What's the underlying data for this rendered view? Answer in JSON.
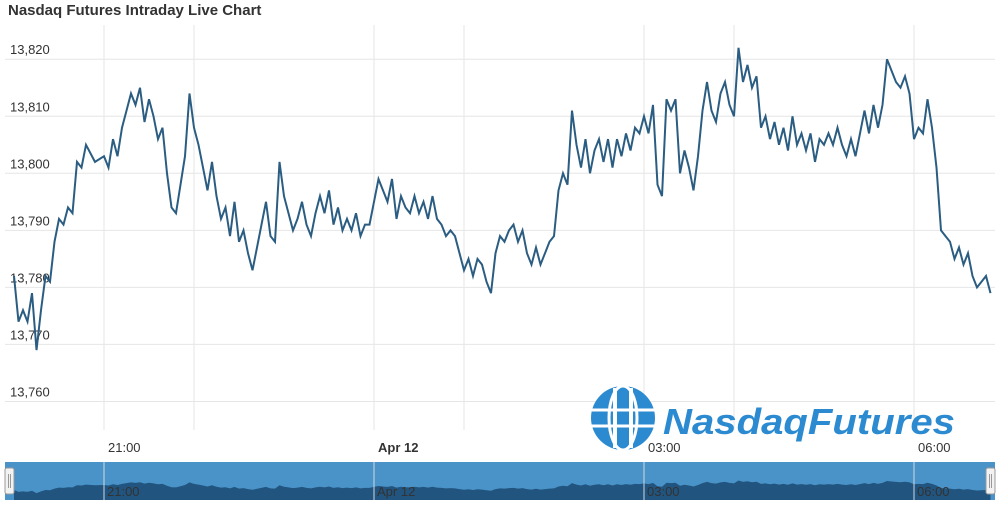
{
  "title": "Nasdaq Futures Intraday Live Chart",
  "colors": {
    "line": "#2b5d82",
    "grid": "#e6e6e6",
    "navigator_bg": "#4a93c8",
    "navigator_fill": "#1d4e75",
    "logo": "#2c8bd0"
  },
  "logo": {
    "text": "NasdaqFutures",
    "icon": "globe-dollar-icon"
  },
  "chart_data": {
    "type": "line",
    "title": "Nasdaq Futures Intraday Live Chart",
    "xlabel": "",
    "ylabel": "",
    "ylim": [
      13755,
      13826
    ],
    "y_ticks": [
      {
        "value": 13760,
        "label": "13,760"
      },
      {
        "value": 13770,
        "label": "13,770"
      },
      {
        "value": 13780,
        "label": "13,780"
      },
      {
        "value": 13790,
        "label": "13,790"
      },
      {
        "value": 13800,
        "label": "13,800"
      },
      {
        "value": 13810,
        "label": "13,810"
      },
      {
        "value": 13820,
        "label": "13,820"
      }
    ],
    "x_range_hours": [
      19.9,
      30.9
    ],
    "x_grid_hours": [
      21,
      22,
      24,
      25,
      27,
      28,
      30
    ],
    "x_ticks": [
      {
        "hour": 21,
        "label": "21:00",
        "bold": false
      },
      {
        "hour": 24,
        "label": "Apr 12",
        "bold": true
      },
      {
        "hour": 27,
        "label": "03:00",
        "bold": false
      },
      {
        "hour": 30,
        "label": "06:00",
        "bold": false
      }
    ],
    "grid": true,
    "legend": "none",
    "series": [
      {
        "values": [
          [
            20.0,
            13782
          ],
          [
            20.05,
            13774
          ],
          [
            20.1,
            13776
          ],
          [
            20.15,
            13774
          ],
          [
            20.2,
            13779
          ],
          [
            20.25,
            13769
          ],
          [
            20.3,
            13776
          ],
          [
            20.35,
            13782
          ],
          [
            20.4,
            13781
          ],
          [
            20.45,
            13788
          ],
          [
            20.5,
            13792
          ],
          [
            20.55,
            13791
          ],
          [
            20.6,
            13794
          ],
          [
            20.65,
            13793
          ],
          [
            20.7,
            13802
          ],
          [
            20.75,
            13801
          ],
          [
            20.8,
            13805
          ],
          [
            20.9,
            13802
          ],
          [
            21.0,
            13803
          ],
          [
            21.05,
            13801
          ],
          [
            21.1,
            13806
          ],
          [
            21.15,
            13803
          ],
          [
            21.2,
            13808
          ],
          [
            21.25,
            13811
          ],
          [
            21.3,
            13814
          ],
          [
            21.35,
            13812
          ],
          [
            21.4,
            13815
          ],
          [
            21.45,
            13809
          ],
          [
            21.5,
            13813
          ],
          [
            21.55,
            13810
          ],
          [
            21.6,
            13806
          ],
          [
            21.65,
            13808
          ],
          [
            21.7,
            13800
          ],
          [
            21.75,
            13794
          ],
          [
            21.8,
            13793
          ],
          [
            21.85,
            13798
          ],
          [
            21.9,
            13803
          ],
          [
            21.95,
            13814
          ],
          [
            22.0,
            13808
          ],
          [
            22.05,
            13805
          ],
          [
            22.1,
            13801
          ],
          [
            22.15,
            13797
          ],
          [
            22.2,
            13802
          ],
          [
            22.25,
            13796
          ],
          [
            22.3,
            13792
          ],
          [
            22.35,
            13794
          ],
          [
            22.4,
            13789
          ],
          [
            22.45,
            13795
          ],
          [
            22.5,
            13788
          ],
          [
            22.55,
            13790
          ],
          [
            22.6,
            13786
          ],
          [
            22.65,
            13783
          ],
          [
            22.7,
            13787
          ],
          [
            22.75,
            13791
          ],
          [
            22.8,
            13795
          ],
          [
            22.85,
            13789
          ],
          [
            22.9,
            13788
          ],
          [
            22.95,
            13802
          ],
          [
            23.0,
            13796
          ],
          [
            23.05,
            13793
          ],
          [
            23.1,
            13790
          ],
          [
            23.15,
            13792
          ],
          [
            23.2,
            13795
          ],
          [
            23.25,
            13791
          ],
          [
            23.3,
            13789
          ],
          [
            23.35,
            13793
          ],
          [
            23.4,
            13796
          ],
          [
            23.45,
            13793
          ],
          [
            23.5,
            13797
          ],
          [
            23.55,
            13791
          ],
          [
            23.6,
            13794
          ],
          [
            23.65,
            13790
          ],
          [
            23.7,
            13792
          ],
          [
            23.75,
            13790
          ],
          [
            23.8,
            13793
          ],
          [
            23.85,
            13789
          ],
          [
            23.9,
            13791
          ],
          [
            23.95,
            13791
          ],
          [
            24.0,
            13795
          ],
          [
            24.05,
            13799
          ],
          [
            24.1,
            13797
          ],
          [
            24.15,
            13795
          ],
          [
            24.2,
            13799
          ],
          [
            24.25,
            13792
          ],
          [
            24.3,
            13796
          ],
          [
            24.35,
            13794
          ],
          [
            24.4,
            13793
          ],
          [
            24.45,
            13796
          ],
          [
            24.5,
            13793
          ],
          [
            24.55,
            13795
          ],
          [
            24.6,
            13792
          ],
          [
            24.65,
            13796
          ],
          [
            24.7,
            13792
          ],
          [
            24.75,
            13791
          ],
          [
            24.8,
            13789
          ],
          [
            24.85,
            13790
          ],
          [
            24.9,
            13789
          ],
          [
            24.95,
            13786
          ],
          [
            25.0,
            13783
          ],
          [
            25.05,
            13785
          ],
          [
            25.1,
            13782
          ],
          [
            25.15,
            13785
          ],
          [
            25.2,
            13784
          ],
          [
            25.25,
            13781
          ],
          [
            25.3,
            13779
          ],
          [
            25.35,
            13786
          ],
          [
            25.4,
            13789
          ],
          [
            25.45,
            13788
          ],
          [
            25.5,
            13790
          ],
          [
            25.55,
            13791
          ],
          [
            25.6,
            13788
          ],
          [
            25.65,
            13790
          ],
          [
            25.7,
            13786
          ],
          [
            25.75,
            13784
          ],
          [
            25.8,
            13787
          ],
          [
            25.85,
            13784
          ],
          [
            25.9,
            13786
          ],
          [
            25.95,
            13788
          ],
          [
            26.0,
            13789
          ],
          [
            26.05,
            13797
          ],
          [
            26.1,
            13800
          ],
          [
            26.15,
            13798
          ],
          [
            26.2,
            13811
          ],
          [
            26.25,
            13805
          ],
          [
            26.3,
            13801
          ],
          [
            26.35,
            13806
          ],
          [
            26.4,
            13800
          ],
          [
            26.45,
            13804
          ],
          [
            26.5,
            13806
          ],
          [
            26.55,
            13802
          ],
          [
            26.6,
            13806
          ],
          [
            26.65,
            13801
          ],
          [
            26.7,
            13806
          ],
          [
            26.75,
            13803
          ],
          [
            26.8,
            13807
          ],
          [
            26.85,
            13804
          ],
          [
            26.9,
            13808
          ],
          [
            26.95,
            13807
          ],
          [
            27.0,
            13810
          ],
          [
            27.05,
            13807
          ],
          [
            27.1,
            13812
          ],
          [
            27.15,
            13798
          ],
          [
            27.2,
            13796
          ],
          [
            27.25,
            13813
          ],
          [
            27.3,
            13811
          ],
          [
            27.35,
            13813
          ],
          [
            27.4,
            13800
          ],
          [
            27.45,
            13804
          ],
          [
            27.5,
            13801
          ],
          [
            27.55,
            13797
          ],
          [
            27.6,
            13803
          ],
          [
            27.65,
            13811
          ],
          [
            27.7,
            13816
          ],
          [
            27.75,
            13811
          ],
          [
            27.8,
            13809
          ],
          [
            27.85,
            13814
          ],
          [
            27.9,
            13816
          ],
          [
            27.95,
            13812
          ],
          [
            28.0,
            13810
          ],
          [
            28.05,
            13822
          ],
          [
            28.1,
            13816
          ],
          [
            28.15,
            13819
          ],
          [
            28.2,
            13815
          ],
          [
            28.25,
            13817
          ],
          [
            28.3,
            13808
          ],
          [
            28.35,
            13810
          ],
          [
            28.4,
            13806
          ],
          [
            28.45,
            13809
          ],
          [
            28.5,
            13805
          ],
          [
            28.55,
            13808
          ],
          [
            28.6,
            13804
          ],
          [
            28.65,
            13810
          ],
          [
            28.7,
            13805
          ],
          [
            28.75,
            13807
          ],
          [
            28.8,
            13804
          ],
          [
            28.85,
            13807
          ],
          [
            28.9,
            13802
          ],
          [
            28.95,
            13806
          ],
          [
            29.0,
            13805
          ],
          [
            29.05,
            13807
          ],
          [
            29.1,
            13805
          ],
          [
            29.15,
            13808
          ],
          [
            29.2,
            13805
          ],
          [
            29.25,
            13803
          ],
          [
            29.3,
            13806
          ],
          [
            29.35,
            13803
          ],
          [
            29.4,
            13807
          ],
          [
            29.45,
            13811
          ],
          [
            29.5,
            13807
          ],
          [
            29.55,
            13812
          ],
          [
            29.6,
            13808
          ],
          [
            29.65,
            13812
          ],
          [
            29.7,
            13820
          ],
          [
            29.75,
            13818
          ],
          [
            29.8,
            13816
          ],
          [
            29.85,
            13815
          ],
          [
            29.9,
            13817
          ],
          [
            29.95,
            13814
          ],
          [
            30.0,
            13806
          ],
          [
            30.05,
            13808
          ],
          [
            30.1,
            13807
          ],
          [
            30.15,
            13813
          ],
          [
            30.2,
            13808
          ],
          [
            30.25,
            13801
          ],
          [
            30.3,
            13790
          ],
          [
            30.35,
            13789
          ],
          [
            30.4,
            13788
          ],
          [
            30.45,
            13785
          ],
          [
            30.5,
            13787
          ],
          [
            30.55,
            13784
          ],
          [
            30.6,
            13786
          ],
          [
            30.65,
            13782
          ],
          [
            30.7,
            13780
          ],
          [
            30.75,
            13781
          ],
          [
            30.8,
            13782
          ],
          [
            30.85,
            13779
          ]
        ]
      }
    ]
  }
}
